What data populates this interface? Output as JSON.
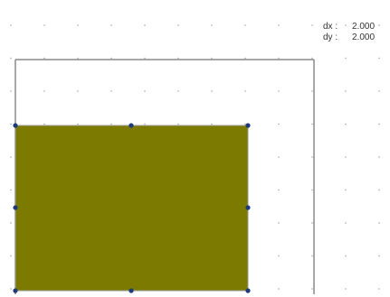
{
  "readout": {
    "dx_label": "dx :",
    "dx_value": "2.000",
    "dy_label": "dy :",
    "dy_value": "2.000"
  },
  "colors": {
    "rect_fill": "#7d7a00",
    "handle": "#1f3a7a",
    "frame": "#8a8a8a",
    "grid_dot": "#b8b8b8"
  }
}
